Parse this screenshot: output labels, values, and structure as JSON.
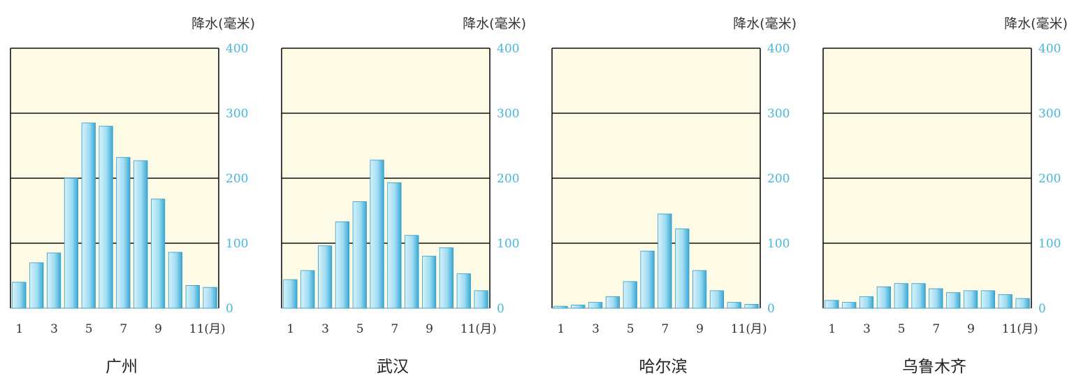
{
  "colors": {
    "plot_background": "#fdfbe6",
    "gridline": "#111111",
    "bar_light": "#d7f1fb",
    "bar_dark": "#3aa8d4",
    "y_tick_text": "#45b6dc"
  },
  "chart_data": [
    {
      "type": "bar",
      "title": "广州",
      "ylabel": "降水(毫米)",
      "xlabel": "(月)",
      "ylim": [
        0,
        400
      ],
      "yticks": [
        0,
        100,
        200,
        300,
        400
      ],
      "x_tick_labels": [
        "1",
        "3",
        "5",
        "7",
        "9",
        "11(月)"
      ],
      "categories": [
        "1",
        "2",
        "3",
        "4",
        "5",
        "6",
        "7",
        "8",
        "9",
        "10",
        "11",
        "12"
      ],
      "values": [
        40,
        70,
        85,
        200,
        285,
        280,
        232,
        227,
        168,
        86,
        35,
        32
      ],
      "grid": true
    },
    {
      "type": "bar",
      "title": "武汉",
      "ylabel": "降水(毫米)",
      "xlabel": "(月)",
      "ylim": [
        0,
        400
      ],
      "yticks": [
        0,
        100,
        200,
        300,
        400
      ],
      "x_tick_labels": [
        "1",
        "3",
        "5",
        "7",
        "9",
        "11(月)"
      ],
      "categories": [
        "1",
        "2",
        "3",
        "4",
        "5",
        "6",
        "7",
        "8",
        "9",
        "10",
        "11",
        "12"
      ],
      "values": [
        44,
        58,
        96,
        133,
        164,
        228,
        193,
        112,
        80,
        93,
        53,
        27
      ],
      "grid": true
    },
    {
      "type": "bar",
      "title": "哈尔滨",
      "ylabel": "降水(毫米)",
      "xlabel": "(月)",
      "ylim": [
        0,
        400
      ],
      "yticks": [
        0,
        100,
        200,
        300,
        400
      ],
      "x_tick_labels": [
        "1",
        "3",
        "5",
        "7",
        "9",
        "11(月)"
      ],
      "categories": [
        "1",
        "2",
        "3",
        "4",
        "5",
        "6",
        "7",
        "8",
        "9",
        "10",
        "11",
        "12"
      ],
      "values": [
        3,
        5,
        9,
        18,
        41,
        88,
        145,
        122,
        58,
        27,
        9,
        6
      ],
      "grid": true
    },
    {
      "type": "bar",
      "title": "乌鲁木齐",
      "ylabel": "降水(毫米)",
      "xlabel": "(月)",
      "ylim": [
        0,
        400
      ],
      "yticks": [
        0,
        100,
        200,
        300,
        400
      ],
      "x_tick_labels": [
        "1",
        "3",
        "5",
        "7",
        "9",
        "11(月)"
      ],
      "categories": [
        "1",
        "2",
        "3",
        "4",
        "5",
        "6",
        "7",
        "8",
        "9",
        "10",
        "11",
        "12"
      ],
      "values": [
        12,
        9,
        18,
        33,
        38,
        38,
        30,
        24,
        27,
        27,
        21,
        15
      ],
      "grid": true
    }
  ]
}
